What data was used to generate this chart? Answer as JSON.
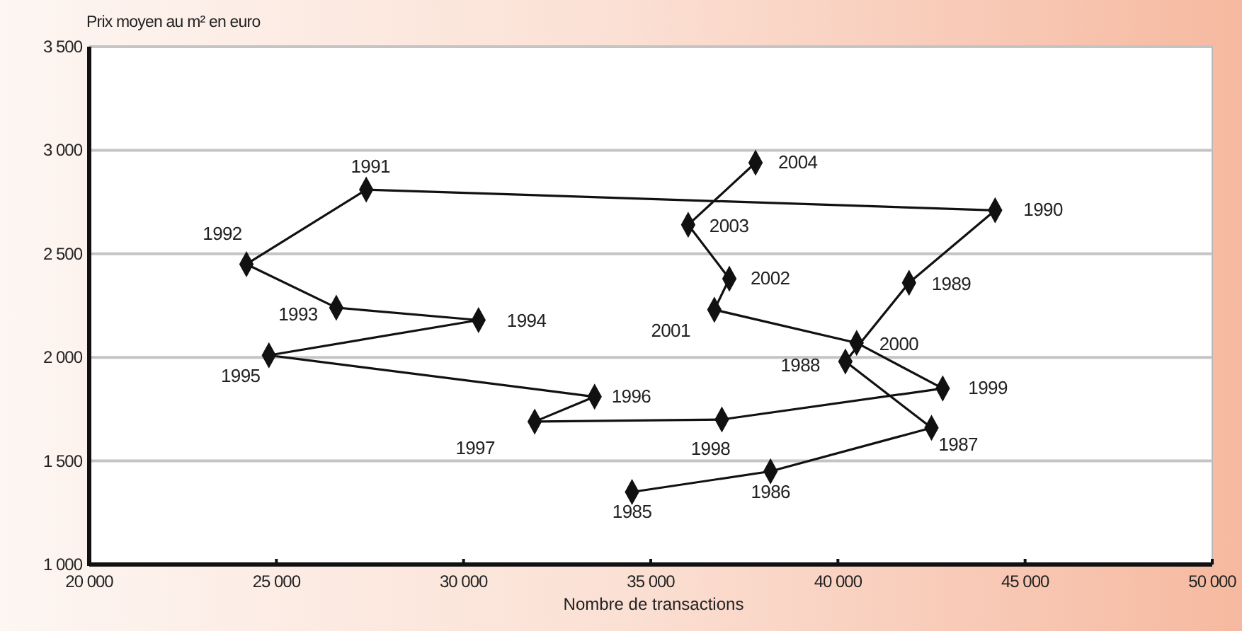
{
  "chart_data": {
    "type": "line",
    "ylabel": "Prix moyen au m² en euro",
    "xlabel": "Nombre de transactions",
    "xlim": [
      20000,
      50000
    ],
    "xticks": [
      {
        "value": 20000,
        "label": "20 000"
      },
      {
        "value": 25000,
        "label": "25 000"
      },
      {
        "value": 30000,
        "label": "30 000"
      },
      {
        "value": 35000,
        "label": "35 000"
      },
      {
        "value": 40000,
        "label": "40 000"
      },
      {
        "value": 45000,
        "label": "45 000"
      },
      {
        "value": 50000,
        "label": "50 000"
      }
    ],
    "ylim": [
      1000,
      3500
    ],
    "yticks": [
      {
        "value": 1000,
        "label": "1 000"
      },
      {
        "value": 1500,
        "label": "1 500"
      },
      {
        "value": 2000,
        "label": "2 000"
      },
      {
        "value": 2500,
        "label": "2 500"
      },
      {
        "value": 3000,
        "label": "3 000"
      },
      {
        "value": 3500,
        "label": "3 500"
      }
    ],
    "grid": "y",
    "marker": "diamond",
    "line_style": "solid",
    "series": [
      {
        "color": "#111111",
        "x": [
          34500,
          38200,
          42500,
          40200,
          41900,
          44200,
          27400,
          24200,
          26600,
          30400,
          24800,
          33500,
          31900,
          36900,
          42800,
          40500,
          36700,
          37100,
          36000,
          37800
        ],
        "values": [
          1350,
          1450,
          1660,
          1980,
          2360,
          2710,
          2810,
          2450,
          2240,
          2180,
          2010,
          1810,
          1690,
          1700,
          1850,
          2070,
          2230,
          2380,
          2640,
          2940
        ]
      }
    ],
    "annotations": [
      {
        "text": "1985",
        "x": 34500,
        "y": 1350
      },
      {
        "text": "1986",
        "x": 38200,
        "y": 1450
      },
      {
        "text": "1987",
        "x": 42500,
        "y": 1660
      },
      {
        "text": "1988",
        "x": 40200,
        "y": 1980
      },
      {
        "text": "1989",
        "x": 41900,
        "y": 2360
      },
      {
        "text": "1990",
        "x": 44200,
        "y": 2710
      },
      {
        "text": "1991",
        "x": 27400,
        "y": 2810
      },
      {
        "text": "1992",
        "x": 24200,
        "y": 2450
      },
      {
        "text": "1993",
        "x": 26600,
        "y": 2240
      },
      {
        "text": "1994",
        "x": 30400,
        "y": 2180
      },
      {
        "text": "1995",
        "x": 24800,
        "y": 2010
      },
      {
        "text": "1996",
        "x": 33500,
        "y": 1810
      },
      {
        "text": "1997",
        "x": 31900,
        "y": 1690
      },
      {
        "text": "1998",
        "x": 36900,
        "y": 1700
      },
      {
        "text": "1999",
        "x": 42800,
        "y": 1850
      },
      {
        "text": "2000",
        "x": 40500,
        "y": 2070
      },
      {
        "text": "2001",
        "x": 36700,
        "y": 2230
      },
      {
        "text": "2002",
        "x": 37100,
        "y": 2380
      },
      {
        "text": "2003",
        "x": 36000,
        "y": 2640
      },
      {
        "text": "2004",
        "x": 37800,
        "y": 2940
      }
    ]
  }
}
